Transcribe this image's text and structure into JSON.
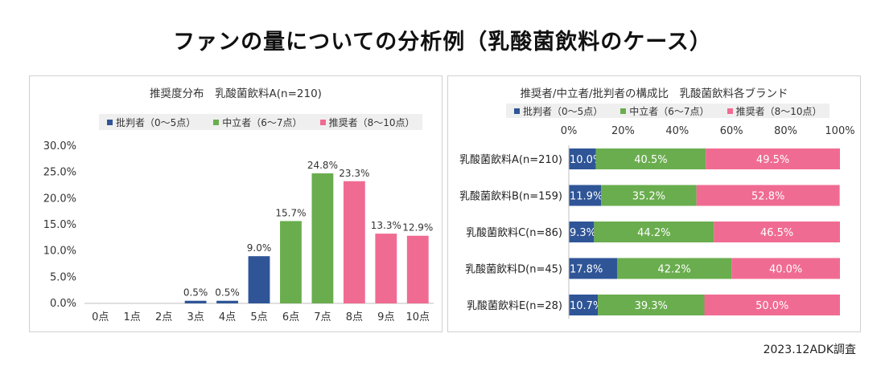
{
  "page": {
    "title": "ファンの量についての分析例（乳酸菌飲料のケース）",
    "footer": "2023.12ADK調査"
  },
  "legend": [
    {
      "label": "批判者（0～5点）",
      "color": "#2f5597"
    },
    {
      "label": "中立者（6～7点）",
      "color": "#6aad4e"
    },
    {
      "label": "推奨者（8～10点）",
      "color": "#f06b92"
    }
  ],
  "chart_data": [
    {
      "type": "bar",
      "title": "推奨度分布　乳酸菌飲料A(n=210)",
      "categories": [
        "0点",
        "1点",
        "2点",
        "3点",
        "4点",
        "5点",
        "6点",
        "7点",
        "8点",
        "9点",
        "10点"
      ],
      "values": [
        0,
        0,
        0,
        0.5,
        0.5,
        9.0,
        15.7,
        24.8,
        23.3,
        13.3,
        12.9
      ],
      "value_labels": [
        "",
        "",
        "",
        "0.5%",
        "0.5%",
        "9.0%",
        "15.7%",
        "24.8%",
        "23.3%",
        "13.3%",
        "12.9%"
      ],
      "groups": [
        "批判者",
        "批判者",
        "批判者",
        "批判者",
        "批判者",
        "批判者",
        "中立者",
        "中立者",
        "推奨者",
        "推奨者",
        "推奨者"
      ],
      "ylim": [
        0,
        30
      ],
      "yticks": [
        "0.0%",
        "5.0%",
        "10.0%",
        "15.0%",
        "20.0%",
        "25.0%",
        "30.0%"
      ],
      "grid": false,
      "legend_position": "top"
    },
    {
      "type": "bar",
      "orientation": "horizontal",
      "stacked": true,
      "title": "推奨者/中立者/批判者の構成比　乳酸菌飲料各ブランド",
      "categories": [
        "乳酸菌飲料A(n=210)",
        "乳酸菌飲料B(n=159)",
        "乳酸菌飲料C(n=86)",
        "乳酸菌飲料D(n=45)",
        "乳酸菌飲料E(n=28)"
      ],
      "series": [
        {
          "name": "批判者（0～5点）",
          "values": [
            10.0,
            11.9,
            9.3,
            17.8,
            10.7
          ],
          "labels": [
            "10.0%",
            "11.9%",
            "9.3%",
            "17.8%",
            "10.7%"
          ]
        },
        {
          "name": "中立者（6～7点）",
          "values": [
            40.5,
            35.2,
            44.2,
            42.2,
            39.3
          ],
          "labels": [
            "40.5%",
            "35.2%",
            "44.2%",
            "42.2%",
            "39.3%"
          ]
        },
        {
          "name": "推奨者（8～10点）",
          "values": [
            49.5,
            52.8,
            46.5,
            40.0,
            50.0
          ],
          "labels": [
            "49.5%",
            "52.8%",
            "46.5%",
            "40.0%",
            "50.0%"
          ]
        }
      ],
      "xlim": [
        0,
        100
      ],
      "xticks": [
        "0%",
        "20%",
        "40%",
        "60%",
        "80%",
        "100%"
      ],
      "xaxis_position": "top",
      "legend_position": "top"
    }
  ]
}
